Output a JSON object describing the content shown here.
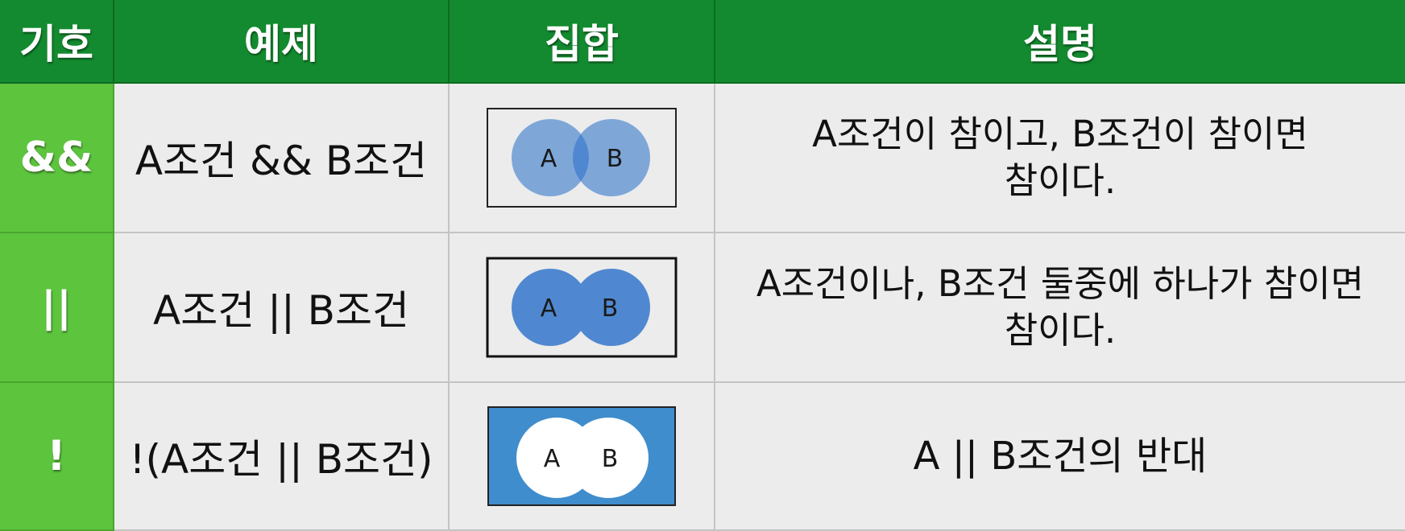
{
  "headers": {
    "symbol": "기호",
    "example": "예제",
    "set": "집합",
    "description": "설명"
  },
  "rows": [
    {
      "symbol": "&&",
      "example": "A조건 && B조건",
      "set_labels": [
        "A",
        "B"
      ],
      "description": "A조건이 참이고, B조건이 참이면\n참이다."
    },
    {
      "symbol": "||",
      "example": "A조건 || B조건",
      "set_labels": [
        "A",
        "B"
      ],
      "description": "A조건이나, B조건 둘중에 하나가 참이면\n참이다."
    },
    {
      "symbol": "!",
      "example": "!(A조건 || B조건)",
      "set_labels": [
        "A",
        "B"
      ],
      "description": "A || B조건의 반대"
    }
  ],
  "colors": {
    "header_bg": "#138a2f",
    "symbol_bg": "#5dc43e",
    "cell_bg": "#ececec",
    "venn_light": "#7ea7d8",
    "venn_solid": "#4f88d0",
    "venn_complement_bg": "#3f8dcc"
  }
}
